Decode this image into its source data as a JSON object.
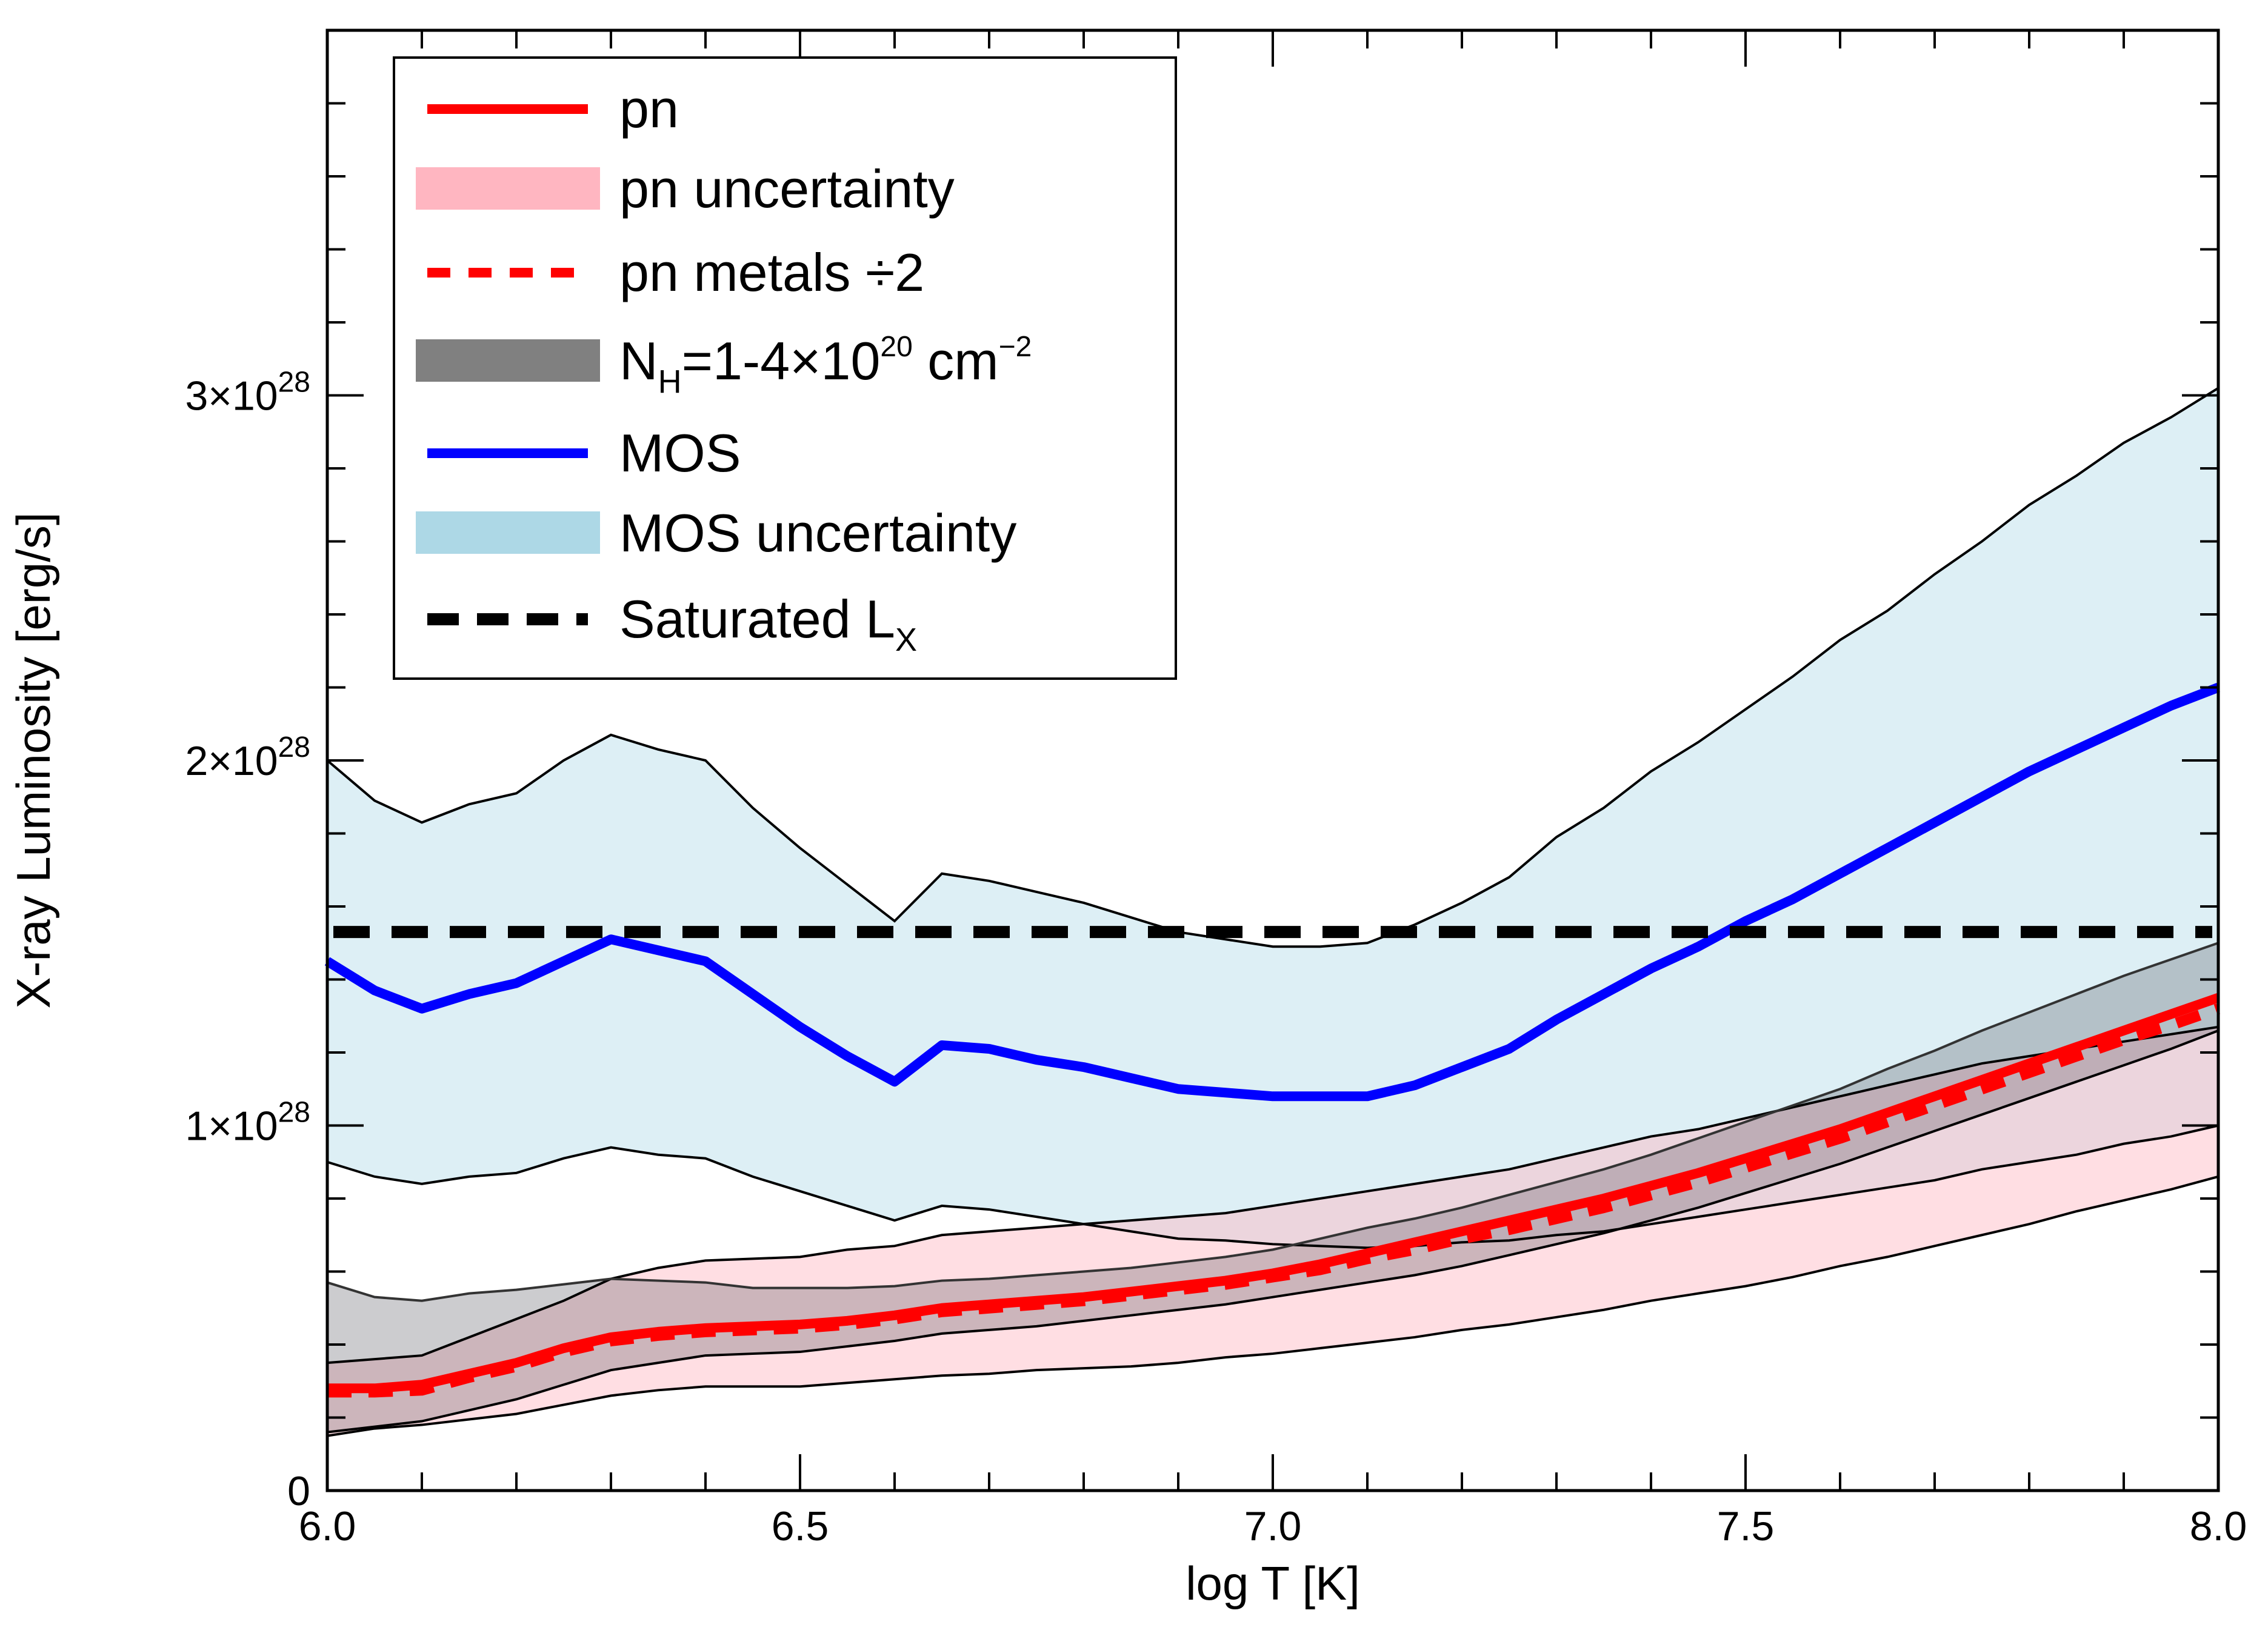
{
  "chart_data": {
    "type": "line",
    "xlabel": "log T [K]",
    "ylabel": "X-ray Luminosity [erg/s]",
    "xlim": [
      6.0,
      8.0
    ],
    "ylim": [
      0,
      4e+28
    ],
    "x_ticks": [
      {
        "value": 6.0,
        "label": "6.0"
      },
      {
        "value": 6.5,
        "label": "6.5"
      },
      {
        "value": 7.0,
        "label": "7.0"
      },
      {
        "value": 7.5,
        "label": "7.5"
      },
      {
        "value": 8.0,
        "label": "8.0"
      }
    ],
    "y_ticks": [
      {
        "value": 0,
        "label": "0",
        "exp": ""
      },
      {
        "value": 1e+28,
        "label": "1×10",
        "exp": "28"
      },
      {
        "value": 2e+28,
        "label": "2×10",
        "exp": "28"
      },
      {
        "value": 3e+28,
        "label": "3×10",
        "exp": "28"
      }
    ],
    "x": [
      6.0,
      6.05,
      6.1,
      6.15,
      6.2,
      6.25,
      6.3,
      6.35,
      6.4,
      6.45,
      6.5,
      6.55,
      6.6,
      6.65,
      6.7,
      6.75,
      6.8,
      6.85,
      6.9,
      6.95,
      7.0,
      7.05,
      7.1,
      7.15,
      7.2,
      7.25,
      7.3,
      7.35,
      7.4,
      7.45,
      7.5,
      7.55,
      7.6,
      7.65,
      7.7,
      7.75,
      7.8,
      7.85,
      7.9,
      7.95,
      8.0
    ],
    "series": [
      {
        "name": "MOS uncertainty",
        "type": "band",
        "color": "#add8e6",
        "upper": [
          2e+28,
          1.89e+28,
          1.83e+28,
          1.88e+28,
          1.91e+28,
          2e+28,
          2.07e+28,
          2.03e+28,
          2e+28,
          1.87e+28,
          1.76e+28,
          1.66e+28,
          1.56e+28,
          1.69e+28,
          1.67e+28,
          1.64e+28,
          1.61e+28,
          1.57e+28,
          1.53e+28,
          1.51e+28,
          1.49e+28,
          1.49e+28,
          1.5e+28,
          1.55e+28,
          1.61e+28,
          1.68e+28,
          1.79e+28,
          1.87e+28,
          1.97e+28,
          2.05e+28,
          2.14e+28,
          2.23e+28,
          2.33e+28,
          2.41e+28,
          2.51e+28,
          2.6e+28,
          2.7e+28,
          2.78e+28,
          2.87e+28,
          2.94e+28,
          3.02e+28
        ],
        "lower": [
          9e+27,
          8.6e+27,
          8.4e+27,
          8.6e+27,
          8.7e+27,
          9.1e+27,
          9.4e+27,
          9.2e+27,
          9.1e+27,
          8.6e+27,
          8.2e+27,
          7.8e+27,
          7.4e+27,
          7.8e+27,
          7.7e+27,
          7.5e+27,
          7.3e+27,
          7.1e+27,
          6.9e+27,
          6.85e+27,
          6.75e+27,
          6.7e+27,
          6.65e+27,
          6.7e+27,
          6.8e+27,
          6.85e+27,
          7e+27,
          7.1e+27,
          7.3e+27,
          7.5e+27,
          7.7e+27,
          7.9e+27,
          8.1e+27,
          8.3e+27,
          8.5e+27,
          8.8e+27,
          9e+27,
          9.2e+27,
          9.5e+27,
          9.7e+27,
          1e+28
        ]
      },
      {
        "name": "pn uncertainty",
        "type": "band",
        "color": "#ffb6c1",
        "upper": [
          3.5e+27,
          3.6e+27,
          3.7e+27,
          4.2e+27,
          4.7e+27,
          5.2e+27,
          5.8e+27,
          6.1e+27,
          6.3e+27,
          6.35e+27,
          6.4e+27,
          6.6e+27,
          6.7e+27,
          7e+27,
          7.1e+27,
          7.2e+27,
          7.3e+27,
          7.4e+27,
          7.5e+27,
          7.6e+27,
          7.8e+27,
          8e+27,
          8.2e+27,
          8.4e+27,
          8.6e+27,
          8.8e+27,
          9.1e+27,
          9.4e+27,
          9.7e+27,
          9.9e+27,
          1.02e+28,
          1.05e+28,
          1.08e+28,
          1.11e+28,
          1.14e+28,
          1.17e+28,
          1.19e+28,
          1.21e+28,
          1.23e+28,
          1.25e+28,
          1.27e+28
        ],
        "lower": [
          1.5e+27,
          1.7e+27,
          1.8e+27,
          1.95e+27,
          2.1e+27,
          2.35e+27,
          2.6e+27,
          2.75e+27,
          2.85e+27,
          2.85e+27,
          2.85e+27,
          2.95e+27,
          3.05e+27,
          3.15e+27,
          3.2e+27,
          3.3e+27,
          3.35e+27,
          3.4e+27,
          3.5e+27,
          3.65e+27,
          3.75e+27,
          3.9e+27,
          4.05e+27,
          4.2e+27,
          4.4e+27,
          4.55e+27,
          4.75e+27,
          4.95e+27,
          5.2e+27,
          5.4e+27,
          5.6e+27,
          5.85e+27,
          6.15e+27,
          6.4e+27,
          6.7e+27,
          7e+27,
          7.3e+27,
          7.65e+27,
          7.95e+27,
          8.25e+27,
          8.6e+27
        ]
      },
      {
        "name": "N_H=1-4×10^20 cm^-2",
        "type": "band",
        "color": "#7f7f7f",
        "upper": [
          5.7e+27,
          5.3e+27,
          5.2e+27,
          5.4e+27,
          5.5e+27,
          5.65e+27,
          5.8e+27,
          5.75e+27,
          5.7e+27,
          5.55e+27,
          5.55e+27,
          5.55e+27,
          5.6e+27,
          5.75e+27,
          5.8e+27,
          5.9e+27,
          6e+27,
          6.1e+27,
          6.25e+27,
          6.4e+27,
          6.6e+27,
          6.9e+27,
          7.2e+27,
          7.45e+27,
          7.75e+27,
          8.1e+27,
          8.45e+27,
          8.8e+27,
          9.2e+27,
          9.65e+27,
          1.01e+28,
          1.055e+28,
          1.1e+28,
          1.155e+28,
          1.205e+28,
          1.26e+28,
          1.31e+28,
          1.36e+28,
          1.41e+28,
          1.455e+28,
          1.5e+28
        ],
        "lower": [
          1.6e+27,
          1.75e+27,
          1.9e+27,
          2.2e+27,
          2.5e+27,
          2.9e+27,
          3.3e+27,
          3.5e+27,
          3.7e+27,
          3.75e+27,
          3.8e+27,
          3.95e+27,
          4.1e+27,
          4.3e+27,
          4.4e+27,
          4.5e+27,
          4.65e+27,
          4.8e+27,
          4.95e+27,
          5.1e+27,
          5.3e+27,
          5.5e+27,
          5.7e+27,
          5.9e+27,
          6.15e+27,
          6.45e+27,
          6.75e+27,
          7.05e+27,
          7.4e+27,
          7.75e+27,
          8.15e+27,
          8.55e+27,
          8.95e+27,
          9.4e+27,
          9.85e+27,
          1.03e+28,
          1.075e+28,
          1.12e+28,
          1.165e+28,
          1.21e+28,
          1.26e+28
        ]
      },
      {
        "name": "pn metals ÷2",
        "type": "line",
        "color": "#ff0000",
        "dash": "dashed",
        "values": [
          2.7e+27,
          2.7e+27,
          2.75e+27,
          3.1e+27,
          3.4e+27,
          3.8e+27,
          4.1e+27,
          4.25e+27,
          4.35e+27,
          4.4e+27,
          4.45e+27,
          4.55e+27,
          4.7e+27,
          4.9e+27,
          5e+27,
          5.1e+27,
          5.2e+27,
          5.35e+27,
          5.5e+27,
          5.65e+27,
          5.85e+27,
          6.05e+27,
          6.35e+27,
          6.6e+27,
          6.9e+27,
          7.15e+27,
          7.45e+27,
          7.75e+27,
          8.1e+27,
          8.45e+27,
          8.85e+27,
          9.25e+27,
          9.65e+27,
          1.01e+28,
          1.055e+28,
          1.1e+28,
          1.145e+28,
          1.19e+28,
          1.235e+28,
          1.275e+28,
          1.32e+28
        ]
      },
      {
        "name": "pn",
        "type": "line",
        "color": "#ff0000",
        "values": [
          2.8e+27,
          2.8e+27,
          2.9e+27,
          3.2e+27,
          3.5e+27,
          3.9e+27,
          4.2e+27,
          4.35e+27,
          4.45e+27,
          4.5e+27,
          4.55e+27,
          4.65e+27,
          4.8e+27,
          5e+27,
          5.1e+27,
          5.2e+27,
          5.3e+27,
          5.45e+27,
          5.6e+27,
          5.75e+27,
          5.95e+27,
          6.2e+27,
          6.5e+27,
          6.8e+27,
          7.1e+27,
          7.4e+27,
          7.7e+27,
          8e+27,
          8.35e+27,
          8.7e+27,
          9.1e+27,
          9.5e+27,
          9.9e+27,
          1.035e+28,
          1.08e+28,
          1.125e+28,
          1.17e+28,
          1.215e+28,
          1.26e+28,
          1.305e+28,
          1.35e+28
        ]
      },
      {
        "name": "MOS",
        "type": "line",
        "color": "#0000ff",
        "values": [
          1.45e+28,
          1.37e+28,
          1.32e+28,
          1.36e+28,
          1.39e+28,
          1.45e+28,
          1.51e+28,
          1.48e+28,
          1.45e+28,
          1.36e+28,
          1.27e+28,
          1.19e+28,
          1.12e+28,
          1.22e+28,
          1.21e+28,
          1.18e+28,
          1.16e+28,
          1.13e+28,
          1.1e+28,
          1.09e+28,
          1.08e+28,
          1.08e+28,
          1.08e+28,
          1.11e+28,
          1.16e+28,
          1.21e+28,
          1.29e+28,
          1.36e+28,
          1.43e+28,
          1.49e+28,
          1.56e+28,
          1.62e+28,
          1.69e+28,
          1.76e+28,
          1.83e+28,
          1.9e+28,
          1.97e+28,
          2.03e+28,
          2.09e+28,
          2.15e+28,
          2.2e+28
        ]
      },
      {
        "name": "Saturated L_X",
        "type": "hline",
        "color": "#000000",
        "dash": "dashed",
        "value": 1.53e+28
      }
    ],
    "legend": {
      "position": "top-left",
      "entries": [
        {
          "label": "pn",
          "style": "line",
          "color": "#ff0000"
        },
        {
          "label": "pn uncertainty",
          "style": "band",
          "color": "#ffb6c1"
        },
        {
          "label": "pn metals ÷2",
          "style": "dashed",
          "color": "#ff0000"
        },
        {
          "label": "N",
          "sub": "H",
          "label_mid": "=1-4×10",
          "sup": "20",
          "label_tail": " cm",
          "sup2": "−2",
          "style": "band",
          "color": "#7f7f7f"
        },
        {
          "label": "MOS",
          "style": "line",
          "color": "#0000ff"
        },
        {
          "label": "MOS uncertainty",
          "style": "band",
          "color": "#add8e6"
        },
        {
          "label": "Saturated L",
          "sub": "X",
          "style": "dashed",
          "color": "#000000"
        }
      ]
    }
  }
}
